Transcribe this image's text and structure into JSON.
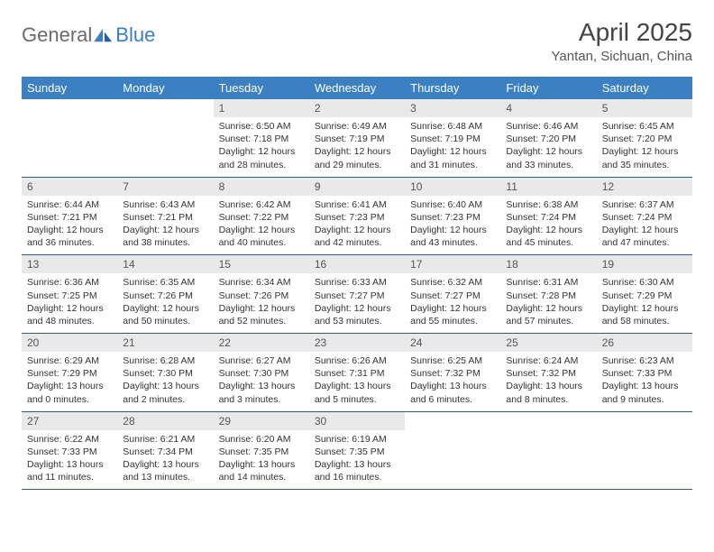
{
  "brand": {
    "part1": "General",
    "part2": "Blue"
  },
  "colors": {
    "header_bg": "#3a80c3",
    "header_text": "#ffffff",
    "daynum_bg": "#e9e9e9",
    "row_divider": "#2f5b87",
    "text": "#333333",
    "logo_gray": "#6a6a6a",
    "logo_blue": "#3a80c3",
    "page_bg": "#ffffff"
  },
  "fonts": {
    "base_family": "Arial",
    "title_size_pt": 21,
    "loc_size_pt": 11,
    "th_size_pt": 10,
    "cell_size_pt": 8
  },
  "title": "April 2025",
  "location": "Yantan, Sichuan, China",
  "weekdays": [
    "Sunday",
    "Monday",
    "Tuesday",
    "Wednesday",
    "Thursday",
    "Friday",
    "Saturday"
  ],
  "calendar": {
    "type": "table",
    "columns": 7,
    "lead_blanks": 2,
    "days": [
      {
        "n": 1,
        "sunrise": "6:50 AM",
        "sunset": "7:18 PM",
        "dl": "12 hours and 28 minutes."
      },
      {
        "n": 2,
        "sunrise": "6:49 AM",
        "sunset": "7:19 PM",
        "dl": "12 hours and 29 minutes."
      },
      {
        "n": 3,
        "sunrise": "6:48 AM",
        "sunset": "7:19 PM",
        "dl": "12 hours and 31 minutes."
      },
      {
        "n": 4,
        "sunrise": "6:46 AM",
        "sunset": "7:20 PM",
        "dl": "12 hours and 33 minutes."
      },
      {
        "n": 5,
        "sunrise": "6:45 AM",
        "sunset": "7:20 PM",
        "dl": "12 hours and 35 minutes."
      },
      {
        "n": 6,
        "sunrise": "6:44 AM",
        "sunset": "7:21 PM",
        "dl": "12 hours and 36 minutes."
      },
      {
        "n": 7,
        "sunrise": "6:43 AM",
        "sunset": "7:21 PM",
        "dl": "12 hours and 38 minutes."
      },
      {
        "n": 8,
        "sunrise": "6:42 AM",
        "sunset": "7:22 PM",
        "dl": "12 hours and 40 minutes."
      },
      {
        "n": 9,
        "sunrise": "6:41 AM",
        "sunset": "7:23 PM",
        "dl": "12 hours and 42 minutes."
      },
      {
        "n": 10,
        "sunrise": "6:40 AM",
        "sunset": "7:23 PM",
        "dl": "12 hours and 43 minutes."
      },
      {
        "n": 11,
        "sunrise": "6:38 AM",
        "sunset": "7:24 PM",
        "dl": "12 hours and 45 minutes."
      },
      {
        "n": 12,
        "sunrise": "6:37 AM",
        "sunset": "7:24 PM",
        "dl": "12 hours and 47 minutes."
      },
      {
        "n": 13,
        "sunrise": "6:36 AM",
        "sunset": "7:25 PM",
        "dl": "12 hours and 48 minutes."
      },
      {
        "n": 14,
        "sunrise": "6:35 AM",
        "sunset": "7:26 PM",
        "dl": "12 hours and 50 minutes."
      },
      {
        "n": 15,
        "sunrise": "6:34 AM",
        "sunset": "7:26 PM",
        "dl": "12 hours and 52 minutes."
      },
      {
        "n": 16,
        "sunrise": "6:33 AM",
        "sunset": "7:27 PM",
        "dl": "12 hours and 53 minutes."
      },
      {
        "n": 17,
        "sunrise": "6:32 AM",
        "sunset": "7:27 PM",
        "dl": "12 hours and 55 minutes."
      },
      {
        "n": 18,
        "sunrise": "6:31 AM",
        "sunset": "7:28 PM",
        "dl": "12 hours and 57 minutes."
      },
      {
        "n": 19,
        "sunrise": "6:30 AM",
        "sunset": "7:29 PM",
        "dl": "12 hours and 58 minutes."
      },
      {
        "n": 20,
        "sunrise": "6:29 AM",
        "sunset": "7:29 PM",
        "dl": "13 hours and 0 minutes."
      },
      {
        "n": 21,
        "sunrise": "6:28 AM",
        "sunset": "7:30 PM",
        "dl": "13 hours and 2 minutes."
      },
      {
        "n": 22,
        "sunrise": "6:27 AM",
        "sunset": "7:30 PM",
        "dl": "13 hours and 3 minutes."
      },
      {
        "n": 23,
        "sunrise": "6:26 AM",
        "sunset": "7:31 PM",
        "dl": "13 hours and 5 minutes."
      },
      {
        "n": 24,
        "sunrise": "6:25 AM",
        "sunset": "7:32 PM",
        "dl": "13 hours and 6 minutes."
      },
      {
        "n": 25,
        "sunrise": "6:24 AM",
        "sunset": "7:32 PM",
        "dl": "13 hours and 8 minutes."
      },
      {
        "n": 26,
        "sunrise": "6:23 AM",
        "sunset": "7:33 PM",
        "dl": "13 hours and 9 minutes."
      },
      {
        "n": 27,
        "sunrise": "6:22 AM",
        "sunset": "7:33 PM",
        "dl": "13 hours and 11 minutes."
      },
      {
        "n": 28,
        "sunrise": "6:21 AM",
        "sunset": "7:34 PM",
        "dl": "13 hours and 13 minutes."
      },
      {
        "n": 29,
        "sunrise": "6:20 AM",
        "sunset": "7:35 PM",
        "dl": "13 hours and 14 minutes."
      },
      {
        "n": 30,
        "sunrise": "6:19 AM",
        "sunset": "7:35 PM",
        "dl": "13 hours and 16 minutes."
      }
    ]
  },
  "labels": {
    "sunrise": "Sunrise:",
    "sunset": "Sunset:",
    "daylight": "Daylight:"
  }
}
